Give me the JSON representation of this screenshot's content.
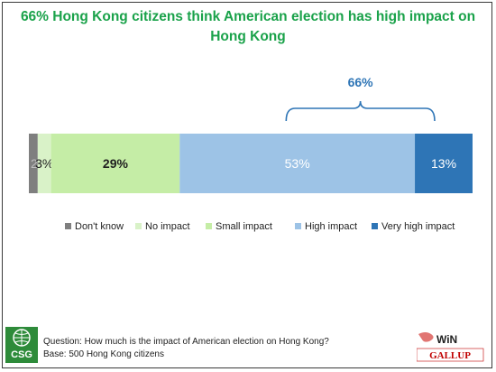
{
  "chart_data": {
    "type": "bar",
    "orientation": "horizontal-stacked",
    "title": "66% Hong Kong citizens think American election has high impact on Hong Kong",
    "categories": [
      "Don't know",
      "No impact",
      "Small impact",
      "High impact",
      "Very high impact"
    ],
    "values": [
      2,
      3,
      29,
      53,
      13
    ],
    "value_labels": [
      "2",
      "3%",
      "29%",
      "53%",
      "13%"
    ],
    "colors": [
      "#7f7f7f",
      "#d9f2c8",
      "#c5eda6",
      "#9dc3e6",
      "#2e75b6"
    ],
    "bracket": {
      "label": "66%",
      "spans": [
        "High impact",
        "Very high impact"
      ],
      "color": "#2e75b6"
    },
    "legend": "bottom",
    "grid": false
  },
  "footer": {
    "question": "Question: How much is the impact of American election on Hong Kong?",
    "base": "Base:  500 Hong Kong citizens"
  },
  "logos": {
    "left": "CSG",
    "right_top": "WiN",
    "right_bottom": "GALLUP"
  }
}
